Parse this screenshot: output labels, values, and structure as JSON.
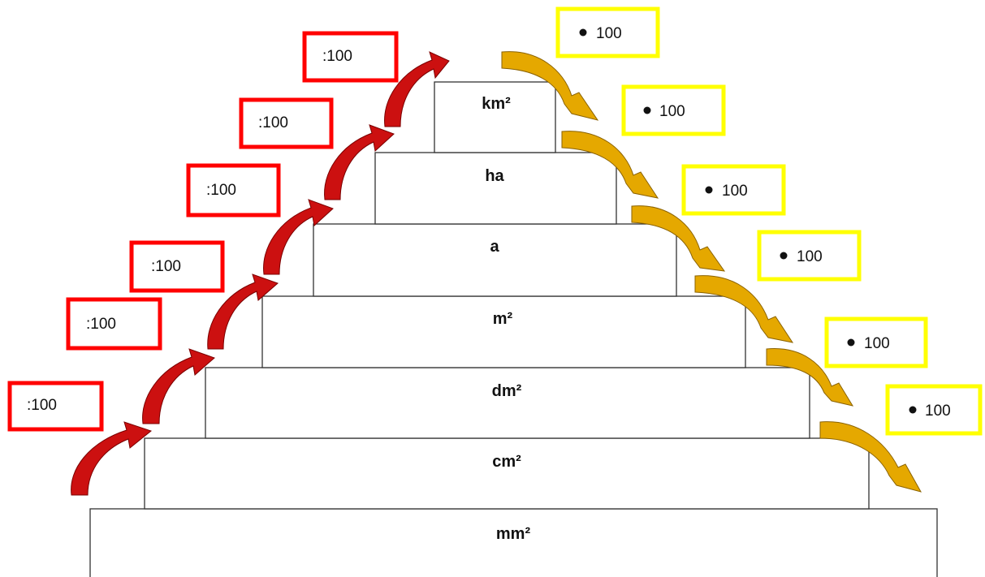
{
  "units": [
    {
      "label": "km²"
    },
    {
      "label": "ha"
    },
    {
      "label": "a"
    },
    {
      "label": "m²"
    },
    {
      "label": "dm²"
    },
    {
      "label": "cm²"
    },
    {
      "label": "mm²"
    }
  ],
  "divide_boxes": [
    {
      "label": ":100"
    },
    {
      "label": ":100"
    },
    {
      "label": ":100"
    },
    {
      "label": ":100"
    },
    {
      "label": ":100"
    },
    {
      "label": ":100"
    }
  ],
  "multiply_boxes": [
    {
      "label": "100"
    },
    {
      "label": "100"
    },
    {
      "label": "100"
    },
    {
      "label": "100"
    },
    {
      "label": "100"
    },
    {
      "label": "100"
    }
  ],
  "colors": {
    "divide_box_border": "#ff0000",
    "multiply_box_border": "#ffff00",
    "divide_arrow": "#cc1010",
    "multiply_arrow": "#e5a800",
    "step_border": "#333333"
  },
  "icons": {
    "divide_arrow": "curved-arrow-up-icon",
    "multiply_arrow": "curved-arrow-down-icon",
    "multiply_dot": "bullet-dot-icon"
  }
}
